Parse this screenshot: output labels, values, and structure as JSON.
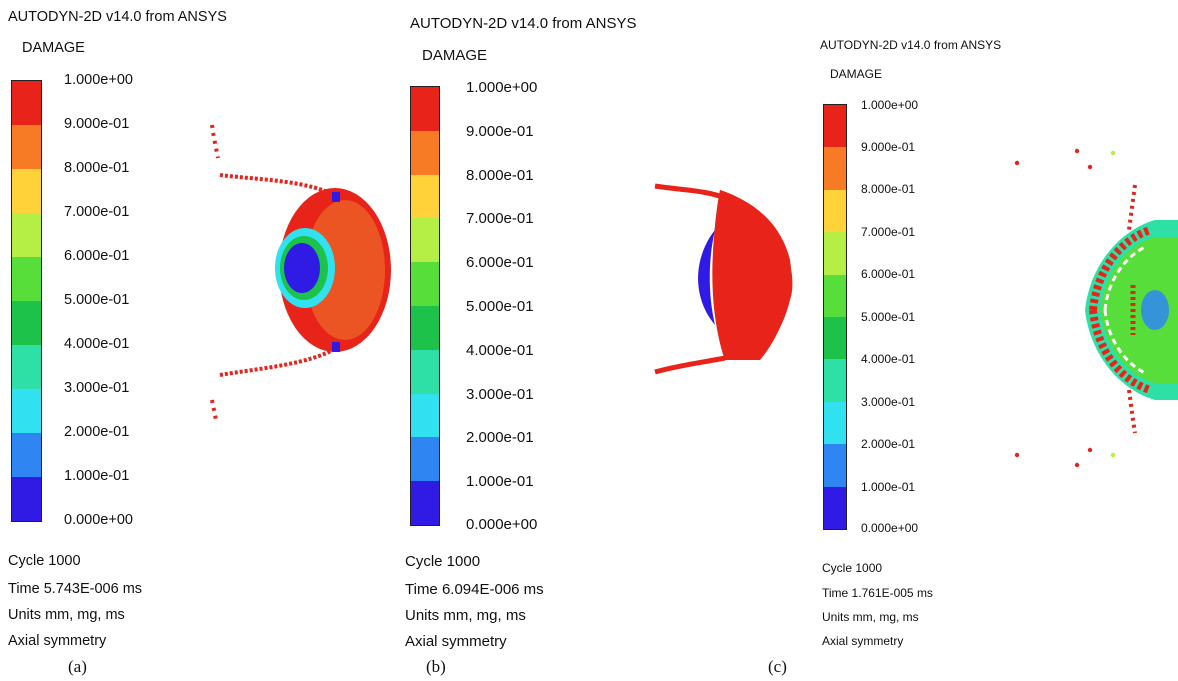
{
  "colors": [
    "#e8241a",
    "#f77a24",
    "#ffd23a",
    "#b5ee44",
    "#58de3a",
    "#1cc24a",
    "#2fe0a6",
    "#31e1f0",
    "#2f86f3",
    "#2f1be3"
  ],
  "panels": [
    {
      "title": "AUTODYN-2D v14.0 from ANSYS",
      "quantity": "DAMAGE",
      "ticks": [
        "1.000e+00",
        "9.000e-01",
        "8.000e-01",
        "7.000e-01",
        "6.000e-01",
        "5.000e-01",
        "4.000e-01",
        "3.000e-01",
        "2.000e-01",
        "1.000e-01",
        "0.000e+00"
      ],
      "cycle": "Cycle 1000",
      "time": "Time 5.743E-006 ms",
      "units": "Units mm, mg, ms",
      "symmetry": "Axial symmetry",
      "caption": "(a)"
    },
    {
      "title": "AUTODYN-2D v14.0 from ANSYS",
      "quantity": "DAMAGE",
      "ticks": [
        "1.000e+00",
        "9.000e-01",
        "8.000e-01",
        "7.000e-01",
        "6.000e-01",
        "5.000e-01",
        "4.000e-01",
        "3.000e-01",
        "2.000e-01",
        "1.000e-01",
        "0.000e+00"
      ],
      "cycle": "Cycle 1000",
      "time": "Time 6.094E-006 ms",
      "units": "Units mm, mg, ms",
      "symmetry": "Axial symmetry",
      "caption": "(b)"
    },
    {
      "title": "AUTODYN-2D v14.0 from ANSYS",
      "quantity": "DAMAGE",
      "ticks": [
        "1.000e+00",
        "9.000e-01",
        "8.000e-01",
        "7.000e-01",
        "6.000e-01",
        "5.000e-01",
        "4.000e-01",
        "3.000e-01",
        "2.000e-01",
        "1.000e-01",
        "0.000e+00"
      ],
      "cycle": "Cycle 1000",
      "time": "Time 1.761E-005 ms",
      "units": "Units mm, mg, ms",
      "symmetry": "Axial symmetry",
      "caption": "(c)"
    }
  ]
}
